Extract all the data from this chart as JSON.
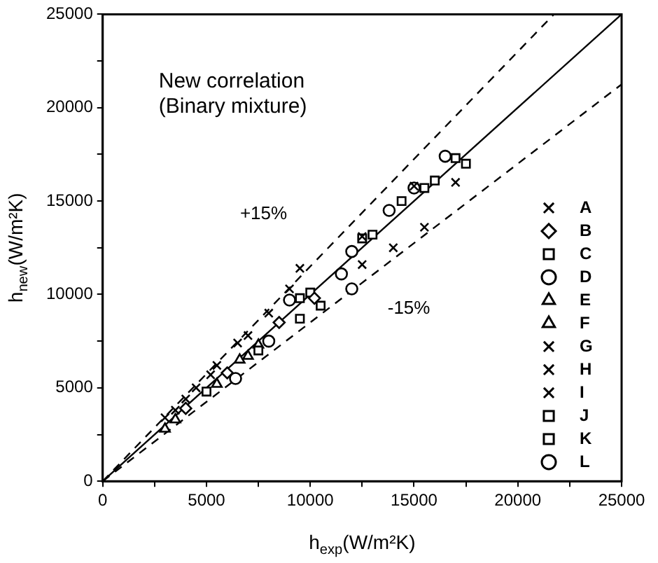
{
  "chart_data": {
    "type": "scatter",
    "xlabel": "h$_{exp}$(W/m²K)",
    "ylabel": "h$_{new}$(W/m²K)",
    "annotations": [
      "New correlation",
      "(Binary mixture)"
    ],
    "xlim": [
      0,
      25000
    ],
    "ylim": [
      0,
      25000
    ],
    "xticks": [
      0,
      {
        "value": 2500,
        "label": null
      },
      5000,
      {
        "value": 7500,
        "label": null
      },
      10000,
      {
        "value": 12500,
        "label": null
      },
      15000,
      {
        "value": 17500,
        "label": null
      },
      20000,
      {
        "value": 22500,
        "label": null
      },
      25000
    ],
    "yticks": [
      0,
      {
        "value": 2500,
        "label": null
      },
      5000,
      {
        "value": 7500,
        "label": null
      },
      10000,
      {
        "value": 12500,
        "label": null
      },
      15000,
      {
        "value": 17500,
        "label": null
      },
      20000,
      {
        "value": 22500,
        "label": null
      },
      25000
    ],
    "grid": false,
    "legend": "right",
    "series": [
      {
        "name": "A",
        "color": "#000000",
        "marker": "cross",
        "x": [
          3500,
          6500,
          9500,
          12500,
          15000
        ],
        "values": [
          3800,
          7400,
          11400,
          13100,
          15800
        ]
      },
      {
        "name": "B",
        "color": "#000000",
        "marker": "diamond",
        "x": [
          4000,
          6000,
          8500,
          10200
        ],
        "values": [
          3900,
          5800,
          8500,
          9800
        ]
      },
      {
        "name": "C",
        "color": "#000000",
        "marker": "square",
        "x": [
          5000,
          7500,
          9500,
          10500
        ],
        "values": [
          4800,
          7000,
          8700,
          9400
        ]
      },
      {
        "name": "D",
        "color": "#000000",
        "marker": "circle",
        "x": [
          6400,
          8000,
          11500,
          12000,
          13800
        ],
        "values": [
          5500,
          7500,
          11100,
          10300,
          14500
        ]
      },
      {
        "name": "E",
        "color": "#000000",
        "marker": "triangle",
        "x": [
          3000,
          5500,
          7000
        ],
        "values": [
          2800,
          5200,
          6700
        ]
      },
      {
        "name": "F",
        "color": "#000000",
        "marker": "triangle",
        "x": [
          3500,
          6600,
          7500
        ],
        "values": [
          3300,
          6500,
          7300
        ]
      },
      {
        "name": "G",
        "color": "#000000",
        "marker": "cross",
        "x": [
          3000,
          4500,
          5500,
          8000
        ],
        "values": [
          3400,
          5000,
          6200,
          9000
        ]
      },
      {
        "name": "H",
        "color": "#000000",
        "marker": "cross",
        "x": [
          4000,
          5200,
          7000,
          9000
        ],
        "values": [
          4400,
          5700,
          7800,
          10300
        ]
      },
      {
        "name": "I",
        "color": "#000000",
        "marker": "cross",
        "x": [
          12500,
          14000,
          15500,
          17000
        ],
        "values": [
          11600,
          12500,
          13600,
          16000
        ]
      },
      {
        "name": "J",
        "color": "#000000",
        "marker": "square",
        "x": [
          9500,
          12500,
          14400,
          16000,
          17000
        ],
        "values": [
          9800,
          13000,
          15000,
          16100,
          17300
        ]
      },
      {
        "name": "K",
        "color": "#000000",
        "marker": "square",
        "x": [
          10000,
          13000,
          15500,
          17500
        ],
        "values": [
          10100,
          13200,
          15700,
          17000
        ]
      },
      {
        "name": "L",
        "color": "#000000",
        "marker": "circle",
        "x": [
          9000,
          12000,
          15000,
          16500
        ],
        "values": [
          9700,
          12300,
          15700,
          17400
        ]
      },
      {
        "type": "line",
        "color": "#000000",
        "line_style": "solid",
        "x": [
          0,
          25000
        ],
        "values": [
          0,
          25000
        ]
      },
      {
        "type": "line",
        "name": "+15%",
        "color": "#000000",
        "line_style": "dashed",
        "x": [
          0,
          21739
        ],
        "values": [
          0,
          25000
        ]
      },
      {
        "type": "line",
        "name": "-15%",
        "color": "#000000",
        "line_style": "dashed",
        "x": [
          0,
          25000
        ],
        "values": [
          0,
          21250
        ]
      }
    ]
  }
}
